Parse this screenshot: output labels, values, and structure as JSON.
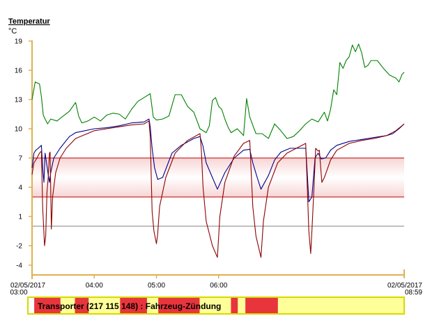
{
  "chart_data": {
    "type": "line",
    "title": "Temperatur",
    "unit": "°C",
    "ylim": [
      -5,
      19.5
    ],
    "yticks": [
      19,
      16,
      13,
      10,
      7,
      4,
      1,
      -2,
      -4
    ],
    "x_range_hours": [
      3.0,
      8.983
    ],
    "xticks": [
      {
        "t": 3.0,
        "line1": "02/05/2017",
        "line2": "03:00"
      },
      {
        "t": 4.0,
        "line1": "04:00",
        "line2": ""
      },
      {
        "t": 5.0,
        "line1": "05:00",
        "line2": ""
      },
      {
        "t": 6.0,
        "line1": "06:00",
        "line2": ""
      },
      {
        "t": 8.983,
        "line1": "02/05/2017",
        "line2": "08:59"
      }
    ],
    "band": {
      "lower": 3,
      "upper": 7,
      "color": "#c00000"
    },
    "reference_line": {
      "value": 0,
      "color": "#c0c0c0"
    },
    "series": [
      {
        "color": "#008000",
        "points": [
          [
            3.0,
            13.0
          ],
          [
            3.05,
            14.8
          ],
          [
            3.12,
            14.6
          ],
          [
            3.15,
            13.3
          ],
          [
            3.18,
            11.4
          ],
          [
            3.21,
            11.0
          ],
          [
            3.25,
            10.5
          ],
          [
            3.3,
            11.0
          ],
          [
            3.4,
            10.8
          ],
          [
            3.5,
            11.3
          ],
          [
            3.6,
            11.8
          ],
          [
            3.7,
            12.7
          ],
          [
            3.75,
            11.3
          ],
          [
            3.8,
            10.6
          ],
          [
            3.9,
            10.8
          ],
          [
            4.0,
            11.2
          ],
          [
            4.1,
            10.8
          ],
          [
            4.2,
            11.4
          ],
          [
            4.3,
            11.6
          ],
          [
            4.4,
            11.5
          ],
          [
            4.5,
            11.0
          ],
          [
            4.6,
            12.0
          ],
          [
            4.7,
            12.8
          ],
          [
            4.8,
            13.2
          ],
          [
            4.9,
            13.6
          ],
          [
            4.95,
            11.2
          ],
          [
            5.0,
            10.9
          ],
          [
            5.1,
            11.0
          ],
          [
            5.2,
            11.3
          ],
          [
            5.3,
            13.5
          ],
          [
            5.4,
            13.5
          ],
          [
            5.5,
            12.3
          ],
          [
            5.6,
            11.7
          ],
          [
            5.7,
            10.0
          ],
          [
            5.8,
            9.6
          ],
          [
            5.85,
            10.3
          ],
          [
            5.9,
            12.9
          ],
          [
            5.95,
            13.2
          ],
          [
            6.0,
            12.3
          ],
          [
            6.05,
            12.0
          ],
          [
            6.1,
            11.0
          ],
          [
            6.15,
            10.2
          ],
          [
            6.2,
            9.6
          ],
          [
            6.3,
            10.0
          ],
          [
            6.4,
            9.3
          ],
          [
            6.45,
            13.1
          ],
          [
            6.5,
            11.2
          ],
          [
            6.6,
            9.5
          ],
          [
            6.7,
            9.5
          ],
          [
            6.8,
            9.0
          ],
          [
            6.9,
            10.5
          ],
          [
            7.0,
            9.8
          ],
          [
            7.1,
            9.0
          ],
          [
            7.2,
            9.2
          ],
          [
            7.3,
            9.8
          ],
          [
            7.4,
            10.5
          ],
          [
            7.5,
            11.0
          ],
          [
            7.6,
            10.7
          ],
          [
            7.7,
            11.7
          ],
          [
            7.75,
            10.8
          ],
          [
            7.8,
            12.0
          ],
          [
            7.85,
            14.0
          ],
          [
            7.9,
            13.5
          ],
          [
            7.95,
            16.8
          ],
          [
            8.0,
            16.2
          ],
          [
            8.05,
            17.0
          ],
          [
            8.1,
            17.4
          ],
          [
            8.15,
            18.6
          ],
          [
            8.2,
            17.9
          ],
          [
            8.25,
            18.7
          ],
          [
            8.3,
            17.8
          ],
          [
            8.35,
            16.3
          ],
          [
            8.4,
            16.5
          ],
          [
            8.45,
            17.0
          ],
          [
            8.55,
            17.0
          ],
          [
            8.65,
            16.2
          ],
          [
            8.75,
            15.5
          ],
          [
            8.85,
            15.2
          ],
          [
            8.9,
            14.8
          ],
          [
            8.95,
            15.6
          ],
          [
            8.983,
            15.8
          ]
        ]
      },
      {
        "color": "#00008b",
        "points": [
          [
            3.0,
            6.0
          ],
          [
            3.03,
            7.5
          ],
          [
            3.06,
            7.8
          ],
          [
            3.1,
            8.0
          ],
          [
            3.15,
            8.3
          ],
          [
            3.17,
            6.0
          ],
          [
            3.19,
            4.5
          ],
          [
            3.21,
            7.5
          ],
          [
            3.24,
            6.2
          ],
          [
            3.26,
            5.3
          ],
          [
            3.28,
            4.5
          ],
          [
            3.3,
            5.5
          ],
          [
            3.35,
            7.0
          ],
          [
            3.45,
            8.0
          ],
          [
            3.6,
            9.2
          ],
          [
            3.7,
            9.6
          ],
          [
            3.85,
            9.8
          ],
          [
            4.0,
            10.0
          ],
          [
            4.2,
            10.1
          ],
          [
            4.4,
            10.3
          ],
          [
            4.6,
            10.6
          ],
          [
            4.8,
            10.7
          ],
          [
            4.88,
            11.0
          ],
          [
            4.9,
            10.2
          ],
          [
            4.93,
            8.0
          ],
          [
            4.97,
            6.0
          ],
          [
            5.02,
            4.8
          ],
          [
            5.1,
            5.0
          ],
          [
            5.25,
            7.5
          ],
          [
            5.4,
            8.3
          ],
          [
            5.6,
            9.0
          ],
          [
            5.7,
            9.2
          ],
          [
            5.75,
            8.2
          ],
          [
            5.8,
            6.5
          ],
          [
            5.9,
            5.0
          ],
          [
            5.98,
            3.8
          ],
          [
            6.1,
            5.5
          ],
          [
            6.25,
            7.0
          ],
          [
            6.4,
            7.8
          ],
          [
            6.5,
            7.9
          ],
          [
            6.55,
            6.5
          ],
          [
            6.62,
            5.0
          ],
          [
            6.68,
            3.8
          ],
          [
            6.8,
            5.2
          ],
          [
            6.9,
            6.8
          ],
          [
            7.0,
            7.6
          ],
          [
            7.15,
            8.0
          ],
          [
            7.3,
            8.0
          ],
          [
            7.4,
            8.0
          ],
          [
            7.42,
            6.0
          ],
          [
            7.45,
            2.5
          ],
          [
            7.5,
            3.0
          ],
          [
            7.55,
            7.0
          ],
          [
            7.6,
            7.5
          ],
          [
            7.65,
            6.9
          ],
          [
            7.72,
            7.0
          ],
          [
            7.8,
            7.8
          ],
          [
            7.9,
            8.3
          ],
          [
            8.1,
            8.7
          ],
          [
            8.3,
            8.9
          ],
          [
            8.5,
            9.1
          ],
          [
            8.7,
            9.3
          ],
          [
            8.8,
            9.5
          ],
          [
            8.9,
            10.0
          ],
          [
            8.983,
            10.5
          ]
        ]
      },
      {
        "color": "#8b0000",
        "points": [
          [
            3.0,
            5.3
          ],
          [
            3.03,
            6.5
          ],
          [
            3.08,
            7.0
          ],
          [
            3.12,
            7.5
          ],
          [
            3.15,
            7.7
          ],
          [
            3.17,
            2.0
          ],
          [
            3.2,
            -2.0
          ],
          [
            3.22,
            -1.0
          ],
          [
            3.24,
            3.5
          ],
          [
            3.26,
            5.0
          ],
          [
            3.28,
            7.5
          ],
          [
            3.29,
            7.6
          ],
          [
            3.31,
            -0.3
          ],
          [
            3.33,
            3.0
          ],
          [
            3.38,
            5.5
          ],
          [
            3.45,
            7.0
          ],
          [
            3.55,
            8.0
          ],
          [
            3.7,
            9.0
          ],
          [
            3.85,
            9.4
          ],
          [
            4.0,
            9.8
          ],
          [
            4.2,
            10.0
          ],
          [
            4.4,
            10.2
          ],
          [
            4.6,
            10.4
          ],
          [
            4.8,
            10.5
          ],
          [
            4.88,
            10.8
          ],
          [
            4.9,
            9.2
          ],
          [
            4.93,
            1.5
          ],
          [
            4.96,
            -0.5
          ],
          [
            5.0,
            -1.8
          ],
          [
            5.02,
            -0.8
          ],
          [
            5.05,
            2.0
          ],
          [
            5.15,
            5.0
          ],
          [
            5.3,
            7.5
          ],
          [
            5.5,
            8.8
          ],
          [
            5.7,
            9.5
          ],
          [
            5.72,
            8.0
          ],
          [
            5.75,
            4.0
          ],
          [
            5.8,
            0.5
          ],
          [
            5.9,
            -2.0
          ],
          [
            5.98,
            -3.2
          ],
          [
            6.02,
            1.0
          ],
          [
            6.1,
            4.5
          ],
          [
            6.25,
            7.2
          ],
          [
            6.4,
            8.5
          ],
          [
            6.5,
            8.8
          ],
          [
            6.52,
            6.0
          ],
          [
            6.55,
            2.0
          ],
          [
            6.6,
            -1.0
          ],
          [
            6.68,
            -3.2
          ],
          [
            6.72,
            0.5
          ],
          [
            6.8,
            4.0
          ],
          [
            6.95,
            6.5
          ],
          [
            7.1,
            7.5
          ],
          [
            7.25,
            8.0
          ],
          [
            7.4,
            8.5
          ],
          [
            7.42,
            5.0
          ],
          [
            7.45,
            -0.5
          ],
          [
            7.48,
            -2.8
          ],
          [
            7.5,
            -0.5
          ],
          [
            7.53,
            3.5
          ],
          [
            7.56,
            8.0
          ],
          [
            7.6,
            7.7
          ],
          [
            7.62,
            7.8
          ],
          [
            7.66,
            4.5
          ],
          [
            7.7,
            5.0
          ],
          [
            7.8,
            6.8
          ],
          [
            7.9,
            7.8
          ],
          [
            8.1,
            8.5
          ],
          [
            8.3,
            8.8
          ],
          [
            8.5,
            9.0
          ],
          [
            8.7,
            9.3
          ],
          [
            8.85,
            9.8
          ],
          [
            8.983,
            10.5
          ]
        ]
      }
    ]
  },
  "ignition": {
    "label": "Transporter (217 115 148) : Fahrzeug-Zündung",
    "on_color": "#e8353c",
    "off_color": "#ffff99",
    "segments": [
      {
        "from": 3.09,
        "to": 3.51,
        "state": "on"
      },
      {
        "from": 3.51,
        "to": 3.74,
        "state": "off"
      },
      {
        "from": 3.74,
        "to": 3.96,
        "state": "on"
      },
      {
        "from": 3.96,
        "to": 4.46,
        "state": "off"
      },
      {
        "from": 4.46,
        "to": 4.89,
        "state": "on"
      },
      {
        "from": 4.89,
        "to": 5.07,
        "state": "off"
      },
      {
        "from": 5.07,
        "to": 5.73,
        "state": "on"
      },
      {
        "from": 5.73,
        "to": 6.23,
        "state": "off"
      },
      {
        "from": 6.23,
        "to": 6.34,
        "state": "on"
      },
      {
        "from": 6.34,
        "to": 6.46,
        "state": "off"
      },
      {
        "from": 6.46,
        "to": 6.98,
        "state": "on"
      },
      {
        "from": 6.98,
        "to": 8.983,
        "state": "off"
      }
    ]
  }
}
